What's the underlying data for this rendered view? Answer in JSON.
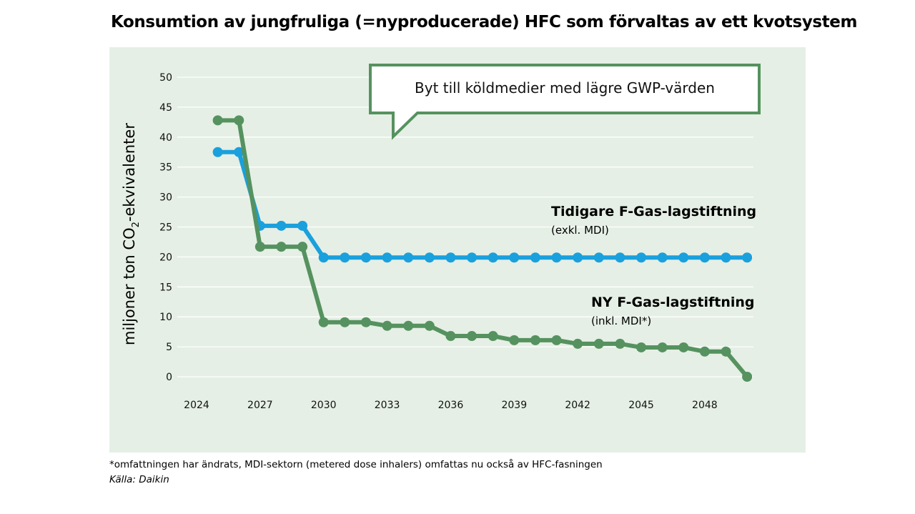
{
  "title": "Konsumtion av jungfruliga (=nyproducerade) HFC som förvaltas av ett kvotsystem",
  "footnote": "*omfattningen har ändrats, MDI-sektorn (metered dose inhalers) omfattas nu också av HFC-fasningen",
  "source": "Källa: Daikin",
  "callout": "Byt till köldmedier med lägre GWP-värden",
  "colors": {
    "background_panel": "#e5efe5",
    "old_series": "#1aa0dd",
    "new_series": "#55925f",
    "callout_border": "#55925f"
  },
  "chart_data": {
    "type": "line",
    "ylabel_main": "miljoner ton CO",
    "ylabel_sub": "2",
    "ylabel_rest": "-ekvivalenter",
    "ylim": [
      0,
      50
    ],
    "yticks": [
      0,
      5,
      10,
      15,
      20,
      25,
      30,
      35,
      40,
      45,
      50
    ],
    "xlim": [
      2024,
      2051
    ],
    "xticks": [
      2024,
      2027,
      2030,
      2033,
      2036,
      2039,
      2042,
      2045,
      2048
    ],
    "grid": true,
    "series": [
      {
        "name": "Tidigare F-Gas-lagstiftning",
        "subtitle": "(exkl. MDI)",
        "color": "#1aa0dd",
        "x": [
          2025,
          2026,
          2027,
          2028,
          2029,
          2030,
          2031,
          2032,
          2033,
          2034,
          2035,
          2036,
          2037,
          2038,
          2039,
          2040,
          2041,
          2042,
          2043,
          2044,
          2045,
          2046,
          2047,
          2048,
          2049,
          2050
        ],
        "values": [
          37.5,
          37.5,
          25.2,
          25.2,
          25.2,
          19.9,
          19.9,
          19.9,
          19.9,
          19.9,
          19.9,
          19.9,
          19.9,
          19.9,
          19.9,
          19.9,
          19.9,
          19.9,
          19.9,
          19.9,
          19.9,
          19.9,
          19.9,
          19.9,
          19.9,
          19.9
        ]
      },
      {
        "name": "NY F-Gas-lagstiftning",
        "subtitle": "(inkl. MDI*)",
        "color": "#55925f",
        "x": [
          2025,
          2026,
          2027,
          2028,
          2029,
          2030,
          2031,
          2032,
          2033,
          2034,
          2035,
          2036,
          2037,
          2038,
          2039,
          2040,
          2041,
          2042,
          2043,
          2044,
          2045,
          2046,
          2047,
          2048,
          2049,
          2050
        ],
        "values": [
          42.8,
          42.8,
          21.7,
          21.7,
          21.7,
          9.1,
          9.1,
          9.1,
          8.5,
          8.5,
          8.5,
          6.8,
          6.8,
          6.8,
          6.1,
          6.1,
          6.1,
          5.5,
          5.5,
          5.5,
          4.9,
          4.9,
          4.9,
          4.2,
          4.2,
          0.0
        ]
      }
    ]
  }
}
